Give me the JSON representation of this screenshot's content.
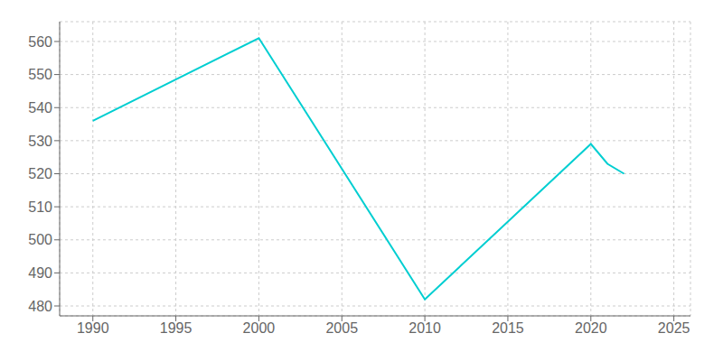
{
  "chart_data": {
    "type": "line",
    "x": [
      1990,
      2000,
      2010,
      2020,
      2021,
      2022
    ],
    "values": [
      536,
      561,
      482,
      529,
      523,
      520
    ],
    "color": "#00CED1",
    "xlim": [
      1988,
      2026
    ],
    "ylim": [
      477,
      566
    ],
    "xticks": [
      1990,
      1995,
      2000,
      2005,
      2010,
      2015,
      2020,
      2025
    ],
    "yticks": [
      480,
      490,
      500,
      510,
      520,
      530,
      540,
      550,
      560
    ],
    "grid": true
  }
}
